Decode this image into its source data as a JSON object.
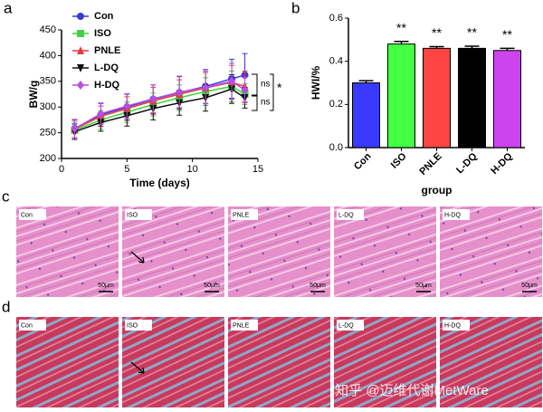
{
  "chart_data": [
    {
      "type": "line",
      "panel_label": "a",
      "x_label": "Time (days)",
      "y_label": "BW/g",
      "x": [
        1,
        3,
        5,
        7,
        9,
        11,
        13,
        14
      ],
      "xlim": [
        0,
        15
      ],
      "xticks": [
        0,
        5,
        10,
        15
      ],
      "ylim": [
        200,
        450
      ],
      "yticks": [
        200,
        250,
        300,
        350,
        400,
        450
      ],
      "legend": "upper left",
      "series": [
        {
          "name": "Con",
          "color": "#3a3ad6",
          "marker": "circle",
          "values": [
            258,
            285,
            300,
            315,
            328,
            340,
            355,
            362
          ],
          "errors": [
            18,
            22,
            25,
            28,
            32,
            33,
            38,
            42
          ]
        },
        {
          "name": "ISO",
          "color": "#3fd43f",
          "marker": "square",
          "values": [
            255,
            275,
            290,
            305,
            318,
            330,
            340,
            325
          ],
          "errors": [
            15,
            18,
            20,
            22,
            25,
            27,
            30,
            20
          ]
        },
        {
          "name": "PNLE",
          "color": "#e83a3a",
          "marker": "triangle-up",
          "values": [
            257,
            282,
            297,
            312,
            325,
            337,
            348,
            340
          ],
          "errors": [
            17,
            20,
            23,
            26,
            28,
            30,
            33,
            30
          ]
        },
        {
          "name": "L-DQ",
          "color": "#111111",
          "marker": "triangle-down",
          "values": [
            252,
            270,
            283,
            297,
            308,
            318,
            335,
            318
          ],
          "errors": [
            15,
            17,
            20,
            22,
            24,
            26,
            28,
            20
          ]
        },
        {
          "name": "H-DQ",
          "color": "#b84ee0",
          "marker": "diamond",
          "values": [
            258,
            287,
            302,
            316,
            329,
            338,
            350,
            333
          ],
          "errors": [
            18,
            21,
            24,
            27,
            30,
            32,
            35,
            25
          ]
        }
      ],
      "annotations": [
        "ns",
        "ns",
        "*"
      ]
    },
    {
      "type": "bar",
      "panel_label": "b",
      "x_label": "group",
      "y_label": "HWI/%",
      "categories": [
        "Con",
        "ISO",
        "PNLE",
        "L-DQ",
        "H-DQ"
      ],
      "values": [
        0.3,
        0.48,
        0.46,
        0.46,
        0.45
      ],
      "errors": [
        0.01,
        0.012,
        0.008,
        0.01,
        0.01
      ],
      "colors": [
        "#3a3aff",
        "#44ff44",
        "#ff4444",
        "#000000",
        "#cc44ee"
      ],
      "value_labels": [
        null,
        "**",
        "**",
        "**",
        "**"
      ],
      "ylim": [
        0,
        0.6
      ],
      "yticks": [
        {
          "value": 0,
          "label": "0.0"
        },
        0.2,
        0.4,
        0.6
      ]
    }
  ],
  "histology": {
    "rows": [
      {
        "label": "c",
        "stain": "he",
        "panels": [
          "Con",
          "ISO",
          "PNLE",
          "L-DQ",
          "H-DQ"
        ],
        "scale_bars": [
          "50μm",
          "50μm",
          "50μm",
          "50μm",
          "50μm"
        ]
      },
      {
        "label": "d",
        "stain": "masson",
        "panels": [
          "Con",
          "ISO",
          "PNLE",
          "L-DQ",
          "H-DQ"
        ]
      }
    ]
  },
  "watermark": "知乎 @迈维代谢MetWare"
}
